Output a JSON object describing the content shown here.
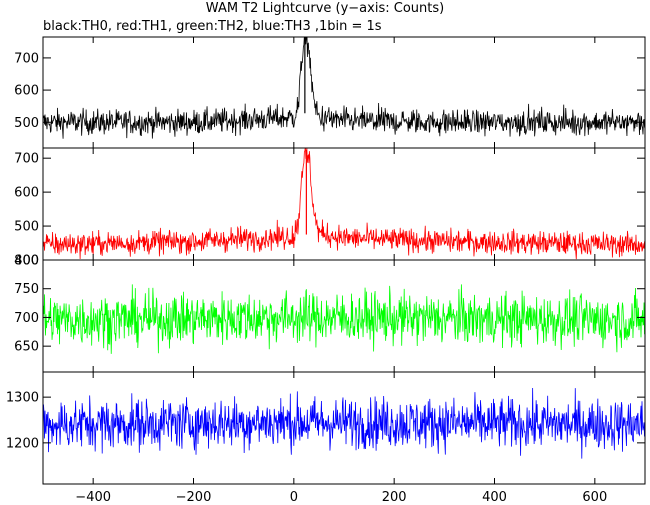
{
  "title": "WAM T2 Lightcurve (y−axis: Counts)",
  "subtitle": "black:TH0, red:TH1, green:TH2, blue:TH3 ,1bin = 1s",
  "chart_data": {
    "type": "line",
    "xlim": [
      -500,
      700
    ],
    "xticks": [
      "−400",
      "−200",
      "0",
      "200",
      "400",
      "600"
    ],
    "grid": false,
    "series": [
      {
        "name": "TH0",
        "color": "#000000",
        "ylim": [
          420,
          765
        ],
        "yticks": [
          "500",
          "600",
          "700"
        ],
        "baseline": 500,
        "noise": 28,
        "peak_x": 22,
        "peak_y": 760,
        "peak_width": 12,
        "x": [
          -500,
          -200,
          0,
          10,
          15,
          20,
          25,
          30,
          35,
          40,
          50,
          100,
          300,
          700
        ],
        "values": [
          500,
          500,
          515,
          560,
          680,
          745,
          740,
          730,
          640,
          560,
          515,
          505,
          500,
          500
        ]
      },
      {
        "name": "TH1",
        "color": "#ff0000",
        "ylim": [
          400,
          730
        ],
        "yticks": [
          "400",
          "500",
          "600",
          "700"
        ],
        "baseline": 450,
        "noise": 25,
        "peak_x": 25,
        "peak_y": 725,
        "peak_width": 12,
        "x": [
          -500,
          -200,
          0,
          10,
          15,
          20,
          25,
          30,
          35,
          40,
          50,
          100,
          300,
          700
        ],
        "values": [
          445,
          455,
          470,
          520,
          640,
          700,
          690,
          700,
          620,
          540,
          480,
          465,
          455,
          445
        ]
      },
      {
        "name": "TH2",
        "color": "#00ff00",
        "ylim": [
          605,
          800
        ],
        "yticks": [
          "650",
          "700",
          "750",
          "800"
        ],
        "baseline": 695,
        "noise": 32,
        "peak_x": null,
        "peak_y": null,
        "peak_width": 0,
        "x": [
          -500,
          0,
          700
        ],
        "values": [
          695,
          700,
          695
        ]
      },
      {
        "name": "TH3",
        "color": "#0000ff",
        "ylim": [
          1110,
          1355
        ],
        "yticks": [
          "1200",
          "1300"
        ],
        "baseline": 1240,
        "noise": 40,
        "peak_x": null,
        "peak_y": null,
        "peak_width": 0,
        "x": [
          -500,
          0,
          700
        ],
        "values": [
          1240,
          1245,
          1240
        ]
      }
    ]
  }
}
